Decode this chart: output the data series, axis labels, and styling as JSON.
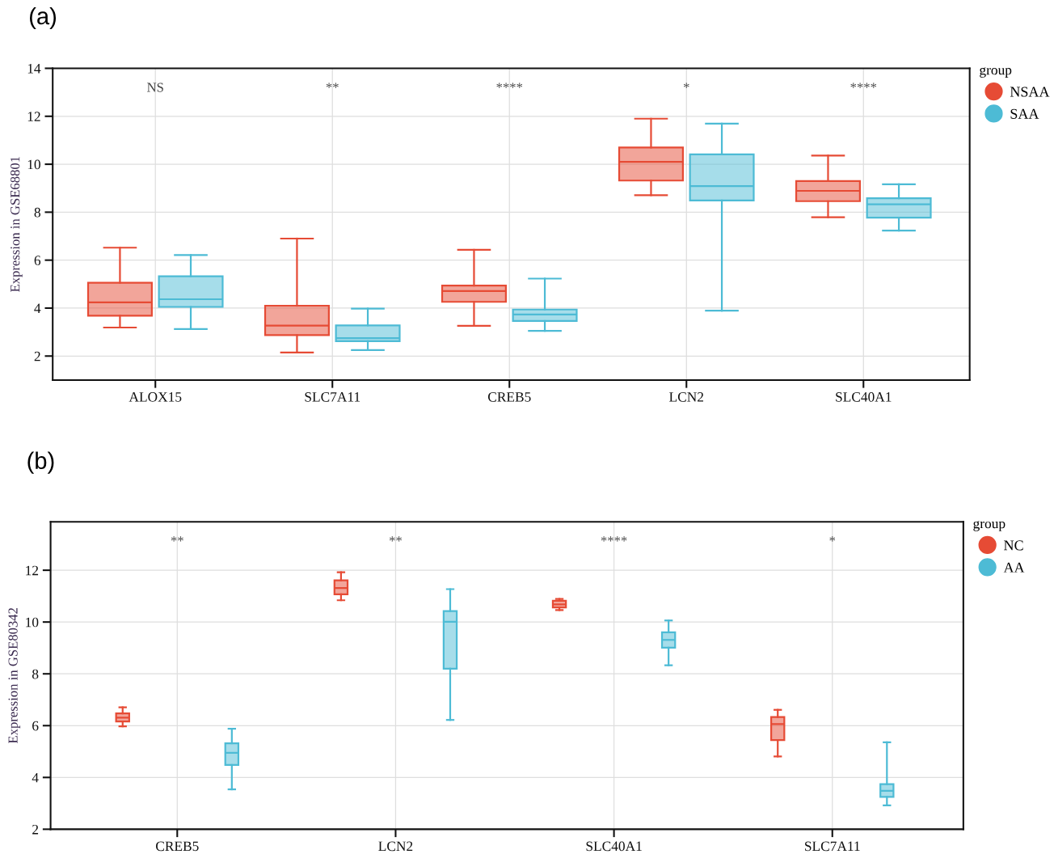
{
  "chart_data": [
    {
      "type": "box",
      "title": "(a)",
      "ylabel": "Expression in GSE68801",
      "categories": [
        "ALOX15",
        "SLC7A11",
        "CREB5",
        "LCN2",
        "SLC40A1"
      ],
      "series": [
        {
          "name": "NSAA",
          "color": "#e64b35",
          "boxes": [
            {
              "low": 3.19,
              "q1": 3.68,
              "median": 4.24,
              "q3": 5.06,
              "high": 6.52
            },
            {
              "low": 2.15,
              "q1": 2.87,
              "median": 3.27,
              "q3": 4.1,
              "high": 6.9
            },
            {
              "low": 3.26,
              "q1": 4.26,
              "median": 4.71,
              "q3": 4.94,
              "high": 6.43
            },
            {
              "low": 8.71,
              "q1": 9.32,
              "median": 10.1,
              "q3": 10.7,
              "high": 11.9
            },
            {
              "low": 7.79,
              "q1": 8.46,
              "median": 8.89,
              "q3": 9.3,
              "high": 10.36
            }
          ]
        },
        {
          "name": "SAA",
          "color": "#4dbbd5",
          "boxes": [
            {
              "low": 3.13,
              "q1": 4.05,
              "median": 4.37,
              "q3": 5.33,
              "high": 6.21
            },
            {
              "low": 2.25,
              "q1": 2.62,
              "median": 2.75,
              "q3": 3.28,
              "high": 3.98
            },
            {
              "low": 3.05,
              "q1": 3.46,
              "median": 3.73,
              "q3": 3.94,
              "high": 5.23
            },
            {
              "low": 3.89,
              "q1": 8.49,
              "median": 9.09,
              "q3": 10.41,
              "high": 11.69
            },
            {
              "low": 7.23,
              "q1": 7.77,
              "median": 8.33,
              "q3": 8.58,
              "high": 9.16
            }
          ]
        }
      ],
      "ylim": [
        1,
        14
      ],
      "yticks": [
        2,
        4,
        6,
        8,
        10,
        12,
        14
      ],
      "grid": true,
      "legend": "right",
      "legend_title": "group",
      "annotations": [
        "NS",
        "**",
        "****",
        "*",
        "****"
      ]
    },
    {
      "type": "box",
      "title": "(b)",
      "ylabel": "Expression in GSE80342",
      "categories": [
        "CREB5",
        "LCN2",
        "SLC40A1",
        "SLC7A11"
      ],
      "series": [
        {
          "name": "NC",
          "color": "#e64b35",
          "boxes": [
            {
              "low": 5.97,
              "q1": 6.16,
              "median": 6.31,
              "q3": 6.47,
              "high": 6.71
            },
            {
              "low": 10.84,
              "q1": 11.07,
              "median": 11.31,
              "q3": 11.61,
              "high": 11.92
            },
            {
              "low": 10.46,
              "q1": 10.56,
              "median": 10.68,
              "q3": 10.82,
              "high": 10.89
            },
            {
              "low": 4.81,
              "q1": 5.44,
              "median": 6.06,
              "q3": 6.33,
              "high": 6.61
            }
          ]
        },
        {
          "name": "AA",
          "color": "#4dbbd5",
          "boxes": [
            {
              "low": 3.54,
              "q1": 4.48,
              "median": 4.95,
              "q3": 5.32,
              "high": 5.88
            },
            {
              "low": 6.22,
              "q1": 8.2,
              "median": 10.01,
              "q3": 10.42,
              "high": 11.27
            },
            {
              "low": 8.33,
              "q1": 9.01,
              "median": 9.31,
              "q3": 9.6,
              "high": 10.06
            },
            {
              "low": 2.92,
              "q1": 3.25,
              "median": 3.48,
              "q3": 3.74,
              "high": 5.36
            }
          ]
        }
      ],
      "ylim": [
        2,
        13.87
      ],
      "yticks": [
        2,
        4,
        6,
        8,
        10,
        12
      ],
      "grid": true,
      "legend": "right",
      "legend_title": "group",
      "annotations": [
        "**",
        "**",
        "****",
        "*"
      ]
    }
  ]
}
